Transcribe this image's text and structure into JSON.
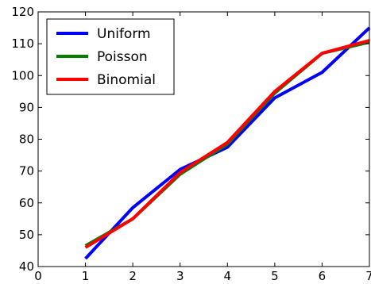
{
  "chart_data": {
    "type": "line",
    "title": "",
    "xlabel": "",
    "ylabel": "",
    "xlim": [
      0,
      7
    ],
    "ylim": [
      40,
      120
    ],
    "x_ticks": [
      0,
      1,
      2,
      3,
      4,
      5,
      6,
      7
    ],
    "y_ticks": [
      40,
      50,
      60,
      70,
      80,
      90,
      100,
      110,
      120
    ],
    "x_tick_labels": [
      "0",
      "1",
      "2",
      "3",
      "4",
      "5",
      "6",
      "7"
    ],
    "y_tick_labels": [
      "40",
      "50",
      "60",
      "70",
      "80",
      "90",
      "100",
      "110",
      "120"
    ],
    "grid": false,
    "legend_position": "top-left",
    "x": [
      1,
      2,
      3,
      4,
      5,
      6,
      7
    ],
    "series": [
      {
        "name": "Uniform",
        "color": "#0000ff",
        "values": [
          42.5,
          58.5,
          70.5,
          77.5,
          93.0,
          101.0,
          115.0
        ]
      },
      {
        "name": "Poisson",
        "color": "#008000",
        "values": [
          46.5,
          55.0,
          69.0,
          78.5,
          94.5,
          107.0,
          110.5
        ]
      },
      {
        "name": "Binomial",
        "color": "#ff0000",
        "values": [
          46.0,
          55.0,
          69.5,
          79.0,
          95.0,
          107.0,
          111.0
        ]
      }
    ]
  }
}
